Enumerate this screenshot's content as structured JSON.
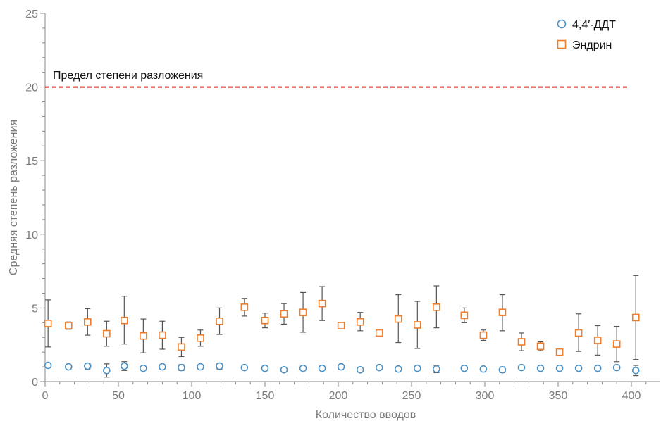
{
  "chart_data": {
    "type": "scatter",
    "xlabel": "Количество вводов",
    "ylabel": "Средняя степень разложения",
    "xlim": [
      0,
      420
    ],
    "ylim": [
      0,
      25
    ],
    "xticks": [
      0,
      50,
      100,
      150,
      200,
      250,
      300,
      350,
      400
    ],
    "yticks": [
      0,
      5,
      10,
      15,
      20,
      25
    ],
    "grid": false,
    "legend_position": "top-right",
    "threshold": {
      "value": 20,
      "label": "Предел степени разложения",
      "color": "#d62728"
    },
    "series": [
      {
        "name": "4,4′-ДДТ",
        "marker": "circle",
        "color": "#4a90c4",
        "x": [
          2,
          16,
          29,
          42,
          54,
          67,
          80,
          93,
          106,
          119,
          136,
          150,
          163,
          176,
          189,
          202,
          215,
          228,
          241,
          254,
          267,
          286,
          299,
          312,
          325,
          338,
          351,
          364,
          377,
          390,
          403
        ],
        "y": [
          1.1,
          1.0,
          1.05,
          0.75,
          1.05,
          0.9,
          1.0,
          0.95,
          1.0,
          1.05,
          0.95,
          0.9,
          0.8,
          0.9,
          0.9,
          1.0,
          0.8,
          0.95,
          0.85,
          0.9,
          0.85,
          0.9,
          0.85,
          0.8,
          0.95,
          0.9,
          0.9,
          0.9,
          0.9,
          0.95,
          0.75
        ],
        "err": [
          0.1,
          0.15,
          0.2,
          0.45,
          0.3,
          0.1,
          0.15,
          0.2,
          0.1,
          0.2,
          0.15,
          0.15,
          0.1,
          0.1,
          0.1,
          0.1,
          0.05,
          0.1,
          0.1,
          0.15,
          0.25,
          0.15,
          0.1,
          0.2,
          0.1,
          0.1,
          0.1,
          0.1,
          0.1,
          0.1,
          0.35
        ]
      },
      {
        "name": "Эндрин",
        "marker": "square",
        "color": "#ef7d2b",
        "x": [
          2,
          16,
          29,
          42,
          54,
          67,
          80,
          93,
          106,
          119,
          136,
          150,
          163,
          176,
          189,
          202,
          215,
          228,
          241,
          254,
          267,
          286,
          299,
          312,
          325,
          338,
          351,
          364,
          377,
          390,
          403
        ],
        "y": [
          3.95,
          3.8,
          4.05,
          3.25,
          4.15,
          3.1,
          3.15,
          2.35,
          2.95,
          4.1,
          5.05,
          4.15,
          4.6,
          4.7,
          5.3,
          3.8,
          4.05,
          3.3,
          4.25,
          3.85,
          5.05,
          4.5,
          3.15,
          4.7,
          2.7,
          2.4,
          2.0,
          3.3,
          2.8,
          2.55,
          4.35
        ]
      }
    ],
    "endrin_err_low": [
      2.35,
      3.55,
      3.15,
      2.4,
      2.55,
      1.95,
      2.2,
      1.7,
      2.4,
      3.2,
      4.45,
      3.65,
      3.9,
      3.35,
      4.15,
      3.7,
      3.45,
      3.1,
      2.65,
      2.25,
      3.65,
      4.0,
      2.8,
      3.45,
      2.1,
      2.1,
      1.85,
      2.05,
      1.8,
      1.35,
      1.5
    ],
    "endrin_err_high": [
      5.55,
      4.05,
      4.95,
      4.1,
      5.8,
      4.25,
      4.1,
      3.0,
      3.5,
      5.0,
      5.65,
      4.65,
      5.3,
      6.05,
      6.45,
      3.9,
      4.7,
      3.5,
      5.9,
      5.45,
      6.5,
      5.0,
      3.5,
      5.9,
      3.3,
      2.7,
      2.15,
      4.6,
      3.8,
      3.75,
      7.2
    ]
  }
}
